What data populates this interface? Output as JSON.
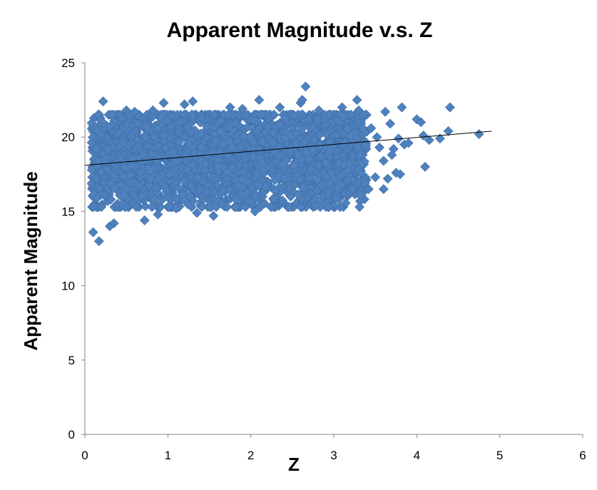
{
  "chart_data": {
    "type": "scatter",
    "title": "Apparent Magnitude v.s. Z",
    "xlabel": "Z",
    "ylabel": "Apparent Magnitude",
    "xlim": [
      0,
      6
    ],
    "ylim": [
      0,
      25
    ],
    "x_ticks": [
      "0",
      "1",
      "2",
      "3",
      "4",
      "5",
      "6"
    ],
    "y_ticks": [
      "0",
      "5",
      "10",
      "15",
      "20",
      "25"
    ],
    "grid": false,
    "legend": "none",
    "series": [
      {
        "marker": "diamond",
        "color": "#4F81BD",
        "core_region": {
          "x_range": [
            0.08,
            3.4
          ],
          "y_range": [
            15.3,
            21.5
          ],
          "description_density": "dense cloud"
        },
        "points": [
          [
            0.1,
            13.6
          ],
          [
            0.17,
            13.0
          ],
          [
            0.2,
            15.3
          ],
          [
            0.22,
            22.4
          ],
          [
            0.3,
            14.0
          ],
          [
            0.35,
            14.2
          ],
          [
            0.45,
            15.5
          ],
          [
            0.5,
            21.8
          ],
          [
            0.6,
            21.7
          ],
          [
            0.72,
            14.4
          ],
          [
            0.82,
            21.8
          ],
          [
            0.88,
            14.8
          ],
          [
            0.95,
            22.3
          ],
          [
            1.1,
            15.2
          ],
          [
            1.2,
            22.2
          ],
          [
            1.3,
            22.4
          ],
          [
            1.35,
            14.9
          ],
          [
            1.55,
            14.7
          ],
          [
            1.65,
            15.5
          ],
          [
            1.75,
            22.0
          ],
          [
            1.9,
            21.9
          ],
          [
            2.05,
            15.0
          ],
          [
            2.1,
            22.5
          ],
          [
            2.35,
            22.0
          ],
          [
            2.48,
            16.0
          ],
          [
            2.6,
            22.3
          ],
          [
            2.62,
            22.5
          ],
          [
            2.66,
            23.4
          ],
          [
            2.72,
            16.2
          ],
          [
            2.82,
            21.8
          ],
          [
            2.95,
            16.8
          ],
          [
            3.02,
            15.9
          ],
          [
            3.1,
            22.0
          ],
          [
            3.22,
            16.5
          ],
          [
            3.28,
            22.5
          ],
          [
            3.3,
            21.8
          ],
          [
            3.35,
            21.5
          ],
          [
            3.42,
            16.5
          ],
          [
            3.45,
            20.6
          ],
          [
            3.5,
            17.3
          ],
          [
            3.55,
            19.3
          ],
          [
            3.6,
            16.5
          ],
          [
            3.62,
            21.7
          ],
          [
            3.65,
            17.2
          ],
          [
            3.68,
            20.9
          ],
          [
            3.72,
            19.2
          ],
          [
            3.75,
            17.6
          ],
          [
            3.8,
            17.5
          ],
          [
            3.82,
            22.0
          ],
          [
            3.85,
            19.5
          ],
          [
            4.0,
            21.2
          ],
          [
            4.05,
            21.0
          ],
          [
            4.08,
            20.1
          ],
          [
            4.1,
            18.0
          ],
          [
            4.15,
            19.8
          ],
          [
            4.28,
            19.9
          ],
          [
            4.38,
            20.4
          ],
          [
            4.4,
            22.0
          ],
          [
            4.75,
            20.2
          ],
          [
            3.52,
            20.0
          ],
          [
            3.6,
            18.4
          ],
          [
            3.7,
            18.8
          ],
          [
            3.78,
            19.9
          ],
          [
            3.9,
            19.6
          ]
        ]
      }
    ],
    "trendline": {
      "type": "linear",
      "x": [
        0,
        4.9
      ],
      "y": [
        18.1,
        20.4
      ],
      "color": "#000000"
    }
  }
}
